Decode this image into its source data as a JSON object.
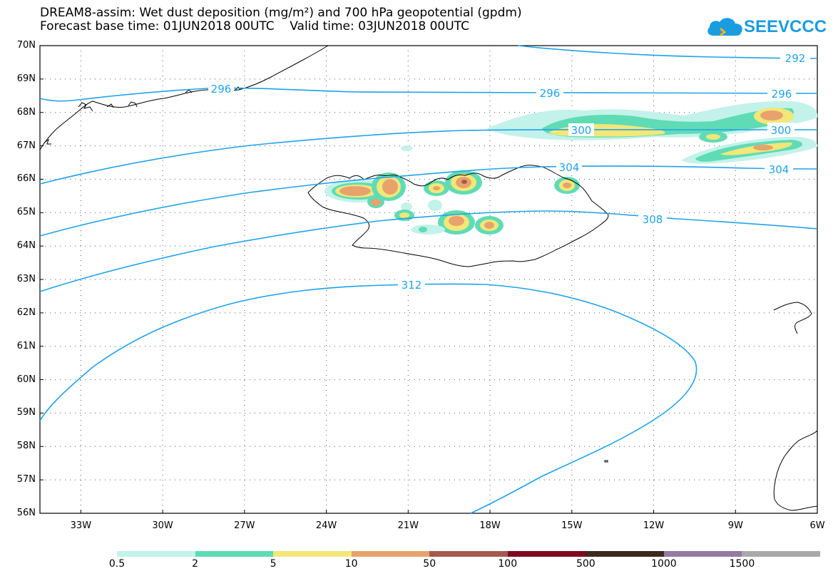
{
  "title": {
    "line1": "DREAM8-assim: Wet dust deposition (mg/m²) and 700 hPa geopotential (gpdm)",
    "line2": "Forecast base time: 01JUN2018 00UTC    Valid time: 03JUN2018 00UTC"
  },
  "logo": {
    "text": "SEEVCCC",
    "icon": "cloud-icon",
    "color": "#1a9ce0"
  },
  "map": {
    "lat_labels": [
      "70N",
      "69N",
      "68N",
      "67N",
      "66N",
      "65N",
      "64N",
      "63N",
      "62N",
      "61N",
      "60N",
      "59N",
      "58N",
      "57N",
      "56N"
    ],
    "lon_labels": [
      "33W",
      "30W",
      "27W",
      "24W",
      "21W",
      "18W",
      "15W",
      "12W",
      "9W",
      "6W"
    ],
    "lat_range": [
      56,
      70
    ],
    "lon_range": [
      -34.5,
      -6
    ],
    "grid": "dotted",
    "contour_color": "#1fa3ea",
    "contour_labels": [
      {
        "value": "296"
      },
      {
        "value": "296"
      },
      {
        "value": "296"
      },
      {
        "value": "292"
      },
      {
        "value": "300"
      },
      {
        "value": "300"
      },
      {
        "value": "304"
      },
      {
        "value": "304"
      },
      {
        "value": "308"
      },
      {
        "value": "312"
      }
    ]
  },
  "colorbar": {
    "labels": [
      "0.5",
      "2",
      "5",
      "10",
      "50",
      "100",
      "500",
      "1000",
      "1500"
    ],
    "colors": [
      "#c3f2ea",
      "#5fdcb5",
      "#f2e778",
      "#e8a26e",
      "#a45a4e",
      "#800825",
      "#3c2a1c",
      "#957aa1",
      "#a9a9a9"
    ]
  }
}
